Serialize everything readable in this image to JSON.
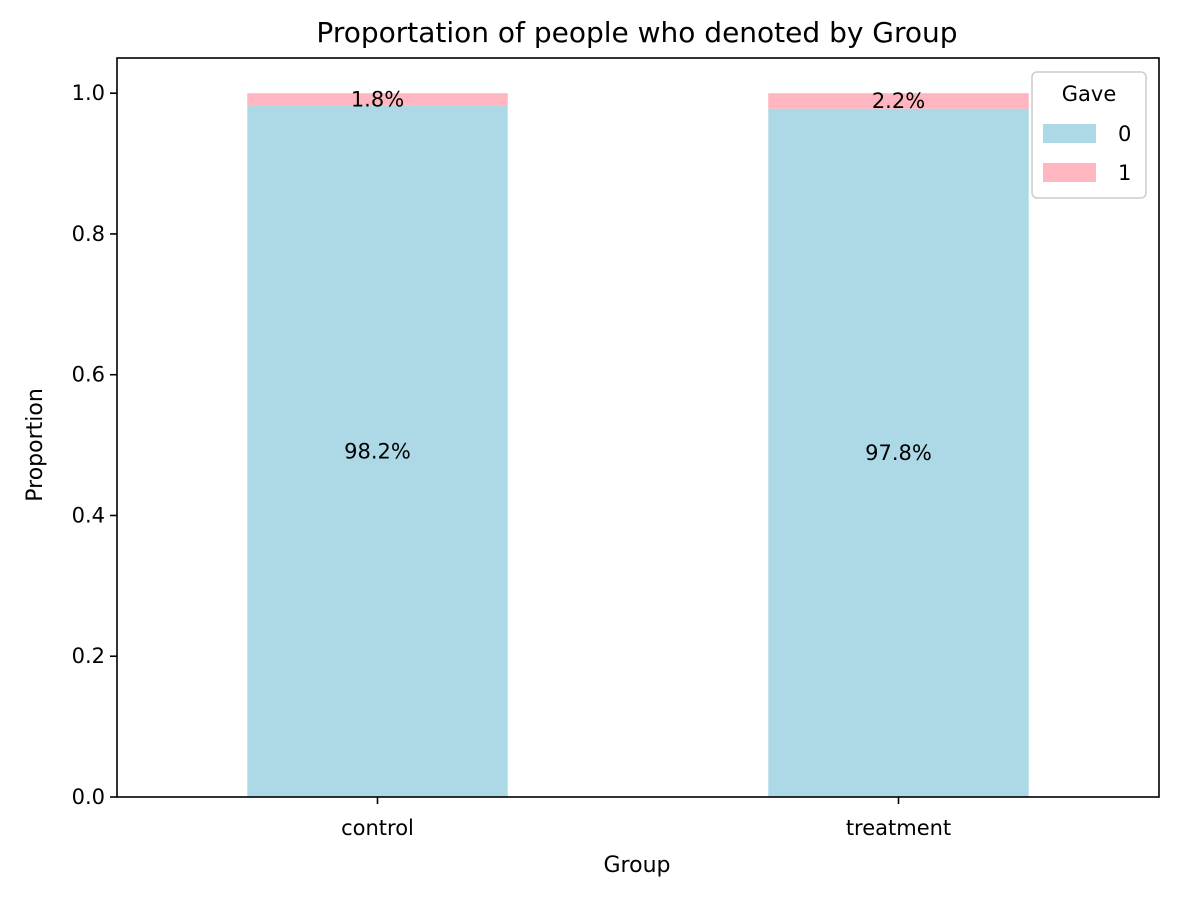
{
  "chart_data": {
    "type": "bar",
    "stacked": true,
    "title": "Proportation of people who denoted by Group",
    "xlabel": "Group",
    "ylabel": "Proportion",
    "categories": [
      "control",
      "treatment"
    ],
    "series": [
      {
        "name": "0",
        "color": "#add8e6",
        "values": [
          0.982,
          0.978
        ],
        "labels": [
          "98.2%",
          "97.8%"
        ]
      },
      {
        "name": "1",
        "color": "#ffb6c1",
        "values": [
          0.018,
          0.022
        ],
        "labels": [
          "1.8%",
          "2.2%"
        ]
      }
    ],
    "ylim": [
      0,
      1.05
    ],
    "yticks": [
      0.0,
      0.2,
      0.4,
      0.6,
      0.8,
      1.0
    ],
    "ytick_labels": [
      "0.0",
      "0.2",
      "0.4",
      "0.6",
      "0.8",
      "1.0"
    ],
    "legend": {
      "title": "Gave",
      "placement": "top-right"
    },
    "grid": false
  }
}
